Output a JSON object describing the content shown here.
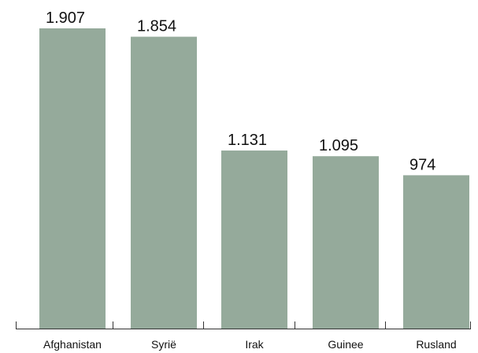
{
  "chart_data": {
    "type": "bar",
    "categories": [
      "Afghanistan",
      "Syrië",
      "Irak",
      "Guinee",
      "Rusland"
    ],
    "values": [
      1907,
      1854,
      1131,
      1095,
      974
    ],
    "value_labels": [
      "1.907",
      "1.854",
      "1.131",
      "1.095",
      "974"
    ],
    "ylim": [
      0,
      1907
    ],
    "grid": false,
    "colors": {
      "bar": "#95aa9b",
      "axis": "#333333",
      "text": "#111111"
    }
  }
}
